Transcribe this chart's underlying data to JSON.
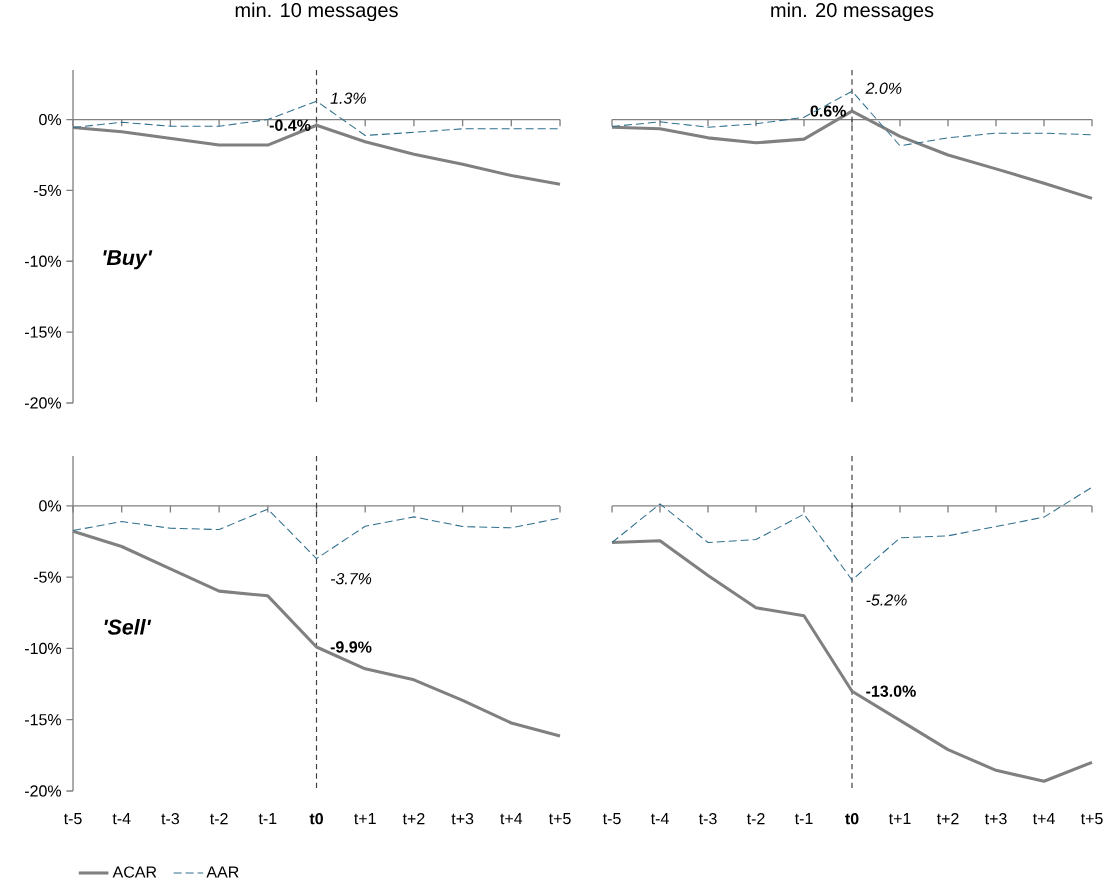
{
  "chart_data": [
    {
      "type": "line",
      "title": "min. 10 messages",
      "categories": [
        "t-5",
        "t-4",
        "t-3",
        "t-2",
        "t-1",
        "**t0**",
        "t+1",
        "t+2",
        "t+3",
        "t+4",
        "t+5"
      ],
      "ylim": [
        -20,
        3.5
      ],
      "yticks": [
        {
          "value": 0,
          "label": "0%"
        },
        {
          "value": -5,
          "label": "-5%"
        },
        {
          "value": -10,
          "label": "-10%"
        },
        {
          "value": -15,
          "label": "-15%"
        },
        {
          "value": -20,
          "label": "-20%"
        }
      ],
      "tick_labels": "y",
      "annotations": [
        "'Buy'"
      ],
      "ref_lines": [
        {
          "axis": "x",
          "value": "**t0**",
          "color": "#404040",
          "line_style": "dashed"
        }
      ],
      "series": [
        {
          "color": "#808080",
          "line_style": "solid",
          "values": [
            -0.56,
            -0.86,
            -1.33,
            -1.8,
            -1.8,
            -0.4,
            -1.57,
            -2.45,
            -3.15,
            -3.95,
            -4.56
          ],
          "value_labels": [
            null,
            null,
            null,
            null,
            null,
            "-0.4%",
            null,
            null,
            null,
            null,
            null
          ]
        },
        {
          "color": "#31708e",
          "line_style": "dashed",
          "values": [
            -0.56,
            -0.19,
            -0.47,
            -0.47,
            0.0,
            1.3,
            -1.12,
            -0.9,
            -0.65,
            -0.65,
            -0.65
          ],
          "value_labels": [
            null,
            null,
            null,
            null,
            null,
            "1.3%",
            null,
            null,
            null,
            null,
            null
          ]
        }
      ]
    },
    {
      "type": "line",
      "title": "min. 20 messages",
      "categories": [
        "t-5",
        "t-4",
        "t-3",
        "t-2",
        "t-1",
        "**t0**",
        "t+1",
        "t+2",
        "t+3",
        "t+4",
        "t+5"
      ],
      "ylim": [
        -20,
        3.5
      ],
      "tick_labels": false,
      "ref_lines": [
        {
          "axis": "x",
          "value": "**t0**",
          "color": "#404040",
          "line_style": "dashed"
        }
      ],
      "series": [
        {
          "color": "#808080",
          "line_style": "solid",
          "values": [
            -0.54,
            -0.65,
            -1.29,
            -1.64,
            -1.38,
            0.6,
            -1.19,
            -2.5,
            -3.48,
            -4.49,
            -5.56
          ],
          "value_labels": [
            null,
            null,
            null,
            null,
            null,
            "0.6%",
            null,
            null,
            null,
            null,
            null
          ]
        },
        {
          "color": "#31708e",
          "line_style": "dashed",
          "values": [
            -0.49,
            -0.16,
            -0.54,
            -0.3,
            0.16,
            2.0,
            -1.85,
            -1.29,
            -0.96,
            -0.96,
            -1.07
          ],
          "value_labels": [
            null,
            null,
            null,
            null,
            null,
            "2.0%",
            null,
            null,
            null,
            null,
            null
          ]
        }
      ]
    },
    {
      "type": "line",
      "categories": [
        "t-5",
        "t-4",
        "t-3",
        "t-2",
        "t-1",
        "**t0**",
        "t+1",
        "t+2",
        "t+3",
        "t+4",
        "t+5"
      ],
      "ylim": [
        -20,
        3.5
      ],
      "yticks": [
        {
          "value": 0,
          "label": "0%"
        },
        {
          "value": -5,
          "label": "-5%"
        },
        {
          "value": -10,
          "label": "-10%"
        },
        {
          "value": -15,
          "label": "-15%"
        },
        {
          "value": -20,
          "label": "-20%"
        }
      ],
      "annotations": [
        "'Sell'"
      ],
      "legend": "bottom left",
      "ref_lines": [
        {
          "axis": "x",
          "value": "**t0**",
          "color": "#404040",
          "line_style": "dashed"
        }
      ],
      "series": [
        {
          "name": "ACAR",
          "color": "#808080",
          "line_style": "solid",
          "values": [
            -1.78,
            -2.85,
            -4.42,
            -5.98,
            -6.31,
            -9.9,
            -11.43,
            -12.2,
            -13.64,
            -15.23,
            -16.14
          ],
          "value_labels": [
            null,
            null,
            null,
            null,
            null,
            "-9.9%",
            null,
            null,
            null,
            null,
            null
          ]
        },
        {
          "name": "AAR",
          "color": "#31708e",
          "line_style": "dashed",
          "values": [
            -1.73,
            -1.1,
            -1.57,
            -1.66,
            -0.23,
            -3.7,
            -1.43,
            -0.77,
            -1.45,
            -1.54,
            -0.86
          ],
          "value_labels": [
            null,
            null,
            null,
            null,
            null,
            "-3.7%",
            null,
            null,
            null,
            null,
            null
          ]
        }
      ]
    },
    {
      "type": "line",
      "categories": [
        "t-5",
        "t-4",
        "t-3",
        "t-2",
        "t-1",
        "**t0**",
        "t+1",
        "t+2",
        "t+3",
        "t+4",
        "t+5"
      ],
      "ylim": [
        -20,
        3.5
      ],
      "tick_labels": "x",
      "ref_lines": [
        {
          "axis": "x",
          "value": "**t0**",
          "color": "#404040",
          "line_style": "dashed"
        }
      ],
      "series": [
        {
          "color": "#808080",
          "line_style": "solid",
          "values": [
            -2.57,
            -2.45,
            -4.88,
            -7.15,
            -7.71,
            -13.0,
            -15.05,
            -17.1,
            -18.55,
            -19.32,
            -17.99
          ],
          "value_labels": [
            null,
            null,
            null,
            null,
            null,
            "-13.0%",
            null,
            null,
            null,
            null,
            null
          ]
        },
        {
          "color": "#31708e",
          "line_style": "dashed",
          "values": [
            -2.57,
            0.14,
            -2.57,
            -2.36,
            -0.58,
            -5.2,
            -2.24,
            -2.1,
            -1.45,
            -0.79,
            1.31
          ],
          "value_labels": [
            null,
            null,
            null,
            null,
            null,
            "-5.2%",
            null,
            null,
            null,
            null,
            null
          ]
        }
      ]
    }
  ]
}
